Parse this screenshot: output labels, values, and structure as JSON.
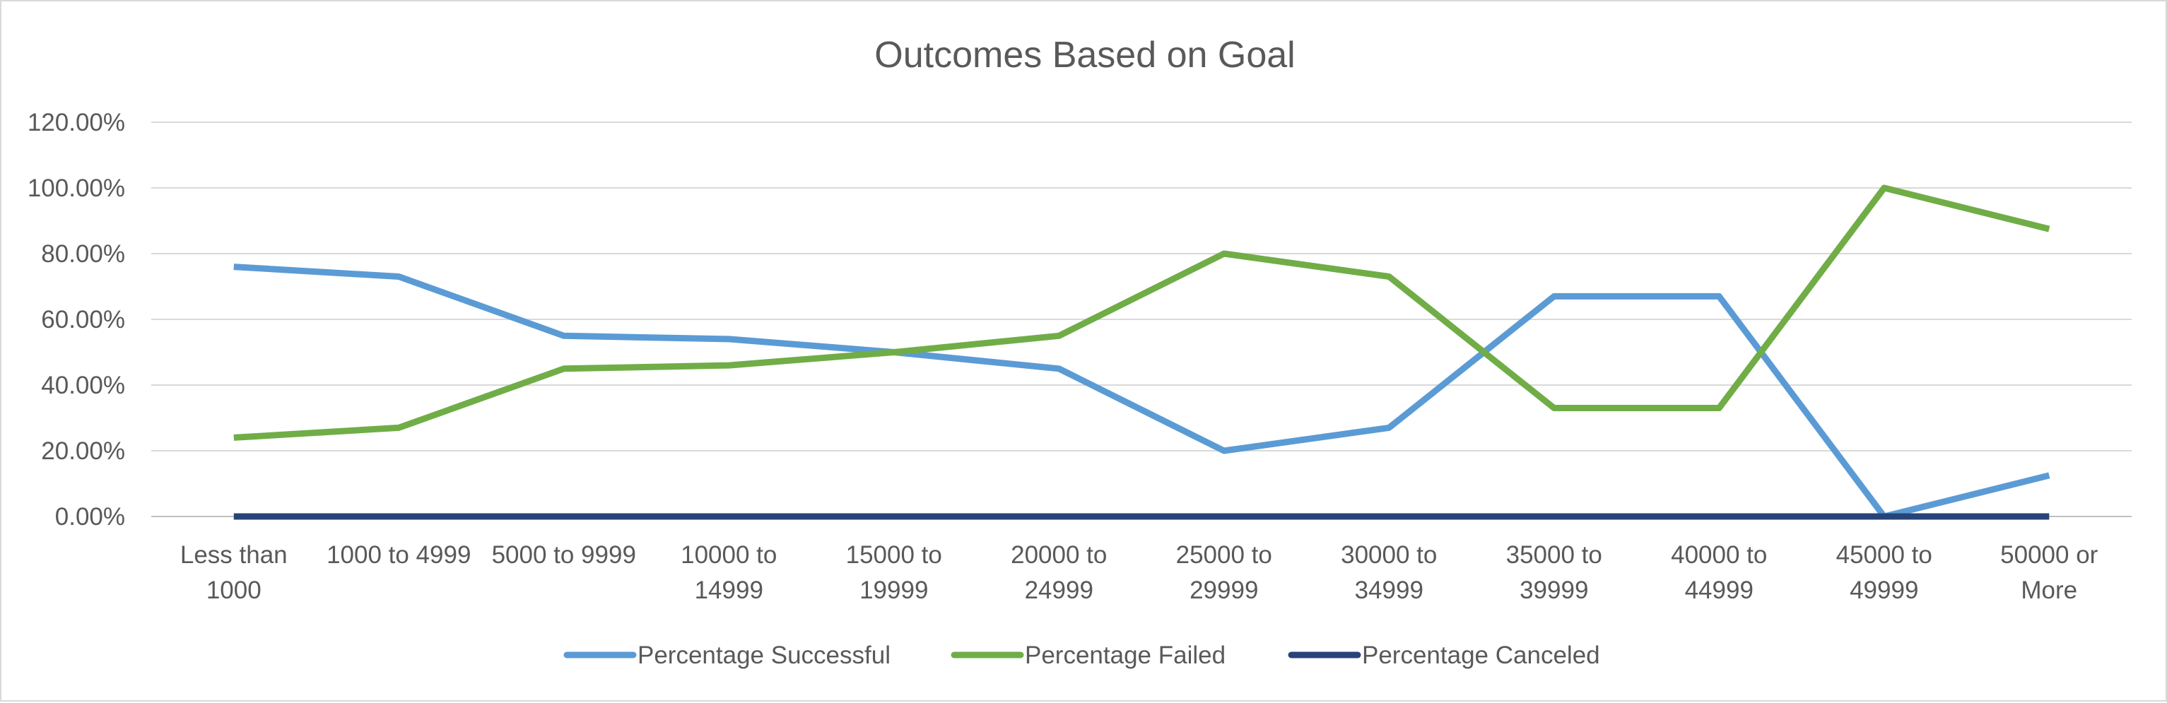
{
  "chart_data": {
    "type": "line",
    "title": "Outcomes Based on Goal",
    "xlabel": "",
    "ylabel": "",
    "ylim": [
      0,
      1.2
    ],
    "y_ticks": [
      0,
      0.2,
      0.4,
      0.6,
      0.8,
      1.0,
      1.2
    ],
    "y_tick_labels": [
      "0.00%",
      "20.00%",
      "40.00%",
      "60.00%",
      "80.00%",
      "100.00%",
      "120.00%"
    ],
    "grid": true,
    "legend_position": "bottom",
    "categories": [
      "Less than 1000",
      "1000 to 4999",
      "5000 to 9999",
      "10000 to 14999",
      "15000 to 19999",
      "20000 to 24999",
      "25000 to 29999",
      "30000 to 34999",
      "35000 to 39999",
      "40000 to 44999",
      "45000 to 49999",
      "50000 or More"
    ],
    "category_label_lines": [
      [
        "Less than",
        "1000"
      ],
      [
        "1000 to 4999"
      ],
      [
        "5000 to 9999"
      ],
      [
        "10000 to",
        "14999"
      ],
      [
        "15000 to",
        "19999"
      ],
      [
        "20000 to",
        "24999"
      ],
      [
        "25000 to",
        "29999"
      ],
      [
        "30000 to",
        "34999"
      ],
      [
        "35000 to",
        "39999"
      ],
      [
        "40000 to",
        "44999"
      ],
      [
        "45000 to",
        "49999"
      ],
      [
        "50000 or",
        "More"
      ]
    ],
    "series": [
      {
        "name": "Percentage Successful",
        "color": "#5b9bd5",
        "values": [
          0.76,
          0.73,
          0.55,
          0.54,
          0.5,
          0.45,
          0.2,
          0.27,
          0.67,
          0.67,
          0.0,
          0.125
        ]
      },
      {
        "name": "Percentage Failed",
        "color": "#70ad47",
        "values": [
          0.24,
          0.27,
          0.45,
          0.46,
          0.5,
          0.55,
          0.8,
          0.73,
          0.33,
          0.33,
          1.0,
          0.875
        ]
      },
      {
        "name": "Percentage Canceled",
        "color": "#264478",
        "values": [
          0,
          0,
          0,
          0,
          0,
          0,
          0,
          0,
          0,
          0,
          0,
          0
        ]
      }
    ]
  }
}
